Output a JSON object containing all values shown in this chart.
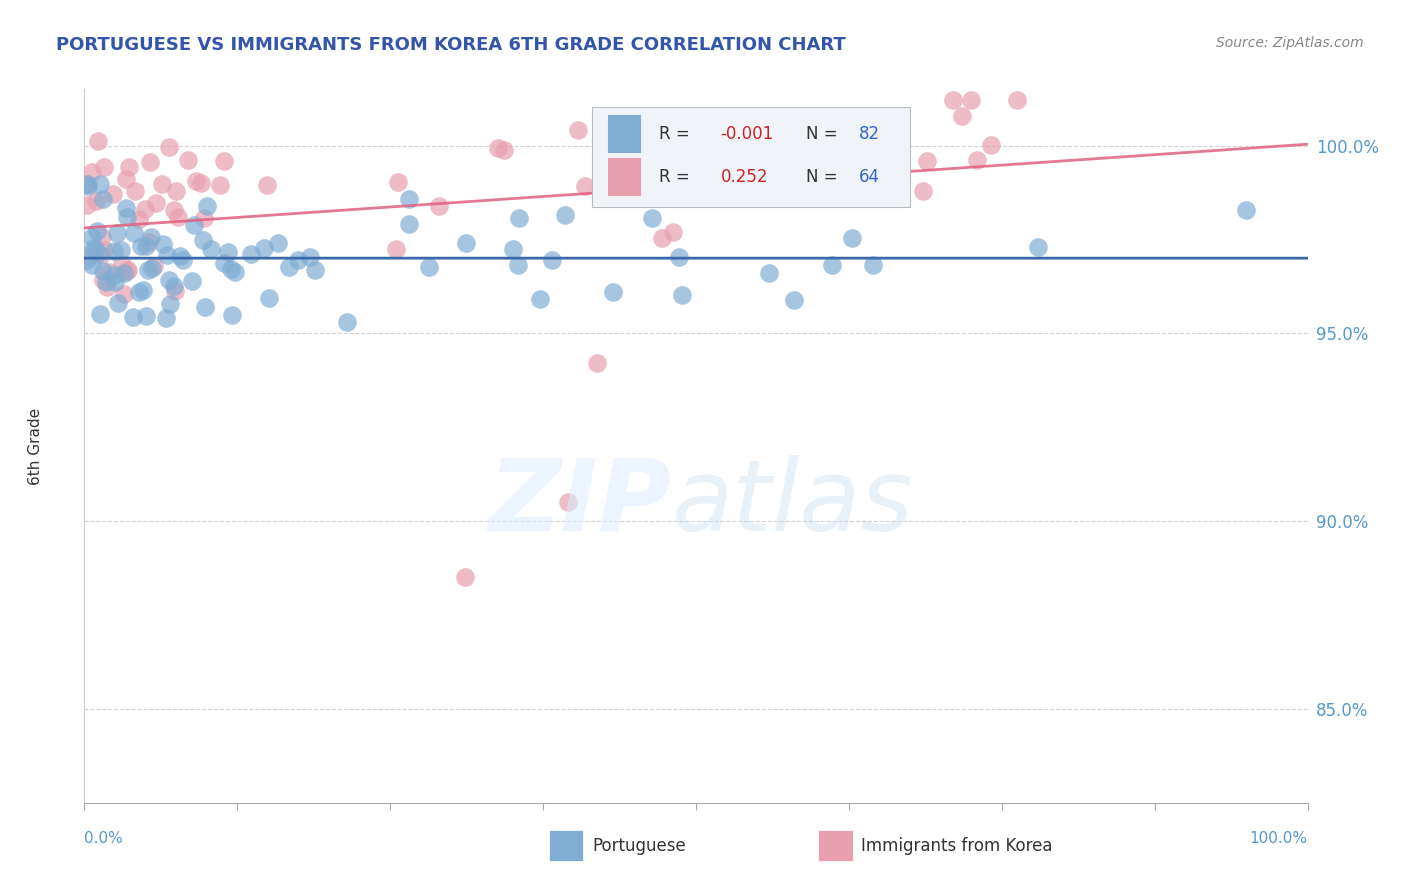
{
  "title": "PORTUGUESE VS IMMIGRANTS FROM KOREA 6TH GRADE CORRELATION CHART",
  "source": "Source: ZipAtlas.com",
  "ylabel": "6th Grade",
  "xlim": [
    0.0,
    100.0
  ],
  "ylim": [
    82.5,
    101.5
  ],
  "yticks": [
    85.0,
    90.0,
    95.0,
    100.0
  ],
  "ytick_labels": [
    "85.0%",
    "90.0%",
    "95.0%",
    "100.0%"
  ],
  "blue_color": "#7fadd4",
  "pink_color": "#e8a0b0",
  "blue_line_color": "#3a6aaa",
  "pink_line_color": "#e06080",
  "legend_R_blue": "-0.001",
  "legend_N_blue": "82",
  "legend_R_pink": "0.252",
  "legend_N_pink": "64",
  "watermark_zip": "ZIP",
  "watermark_atlas": "atlas",
  "title_color": "#3355aa",
  "source_color": "#888888",
  "ylabel_color": "#333333",
  "tick_label_color": "#5599cc",
  "bottom_label_color": "#5599cc"
}
